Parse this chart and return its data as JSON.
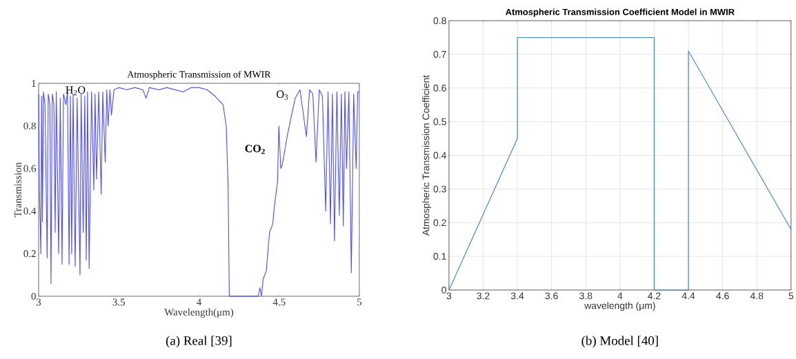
{
  "chart_data": [
    {
      "type": "line",
      "title": "Atmospheric Transmission of MWIR",
      "xlabel": "Wavelength(μm)",
      "ylabel": "Transmission",
      "xlim": [
        3,
        5
      ],
      "ylim": [
        0,
        1
      ],
      "xticks": [
        3,
        3.5,
        4,
        4.5,
        5
      ],
      "yticks": [
        0,
        0.2,
        0.4,
        0.6,
        0.8,
        1
      ],
      "grid": false,
      "series": [
        {
          "color": "#4d4dff",
          "x": [
            3.0,
            3.005,
            3.014,
            3.019,
            3.024,
            3.03,
            3.04,
            3.053,
            3.06,
            3.07,
            3.077,
            3.085,
            3.095,
            3.103,
            3.11,
            3.125,
            3.135,
            3.146,
            3.155,
            3.17,
            3.18,
            3.19,
            3.198,
            3.206,
            3.215,
            3.228,
            3.24,
            3.258,
            3.265,
            3.278,
            3.288,
            3.297,
            3.305,
            3.315,
            3.33,
            3.344,
            3.352,
            3.361,
            3.375,
            3.39,
            3.4,
            3.415,
            3.425,
            3.433,
            3.445,
            3.454,
            3.47,
            3.5,
            3.55,
            3.6,
            3.65,
            3.67,
            3.69,
            3.75,
            3.8,
            3.85,
            3.9,
            3.95,
            4.0,
            4.05,
            4.1,
            4.15,
            4.17,
            4.182,
            4.189,
            4.3,
            4.37,
            4.38,
            4.39,
            4.4,
            4.42,
            4.44,
            4.46,
            4.47,
            4.49,
            4.498,
            4.51,
            4.52,
            4.55,
            4.58,
            4.6,
            4.63,
            4.67,
            4.69,
            4.71,
            4.73,
            4.75,
            4.77,
            4.79,
            4.805,
            4.82,
            4.832,
            4.845,
            4.86,
            4.875,
            4.888,
            4.9,
            4.91,
            4.92,
            4.935,
            4.95,
            4.965,
            4.98,
            4.99,
            5.0
          ],
          "values": [
            0.95,
            0.5,
            0.2,
            0.94,
            0.35,
            0.96,
            0.9,
            0.18,
            0.95,
            0.9,
            0.06,
            0.95,
            0.9,
            0.3,
            0.96,
            0.2,
            0.93,
            0.15,
            0.95,
            0.9,
            0.96,
            0.15,
            0.94,
            0.2,
            0.95,
            0.14,
            0.93,
            0.1,
            0.95,
            0.3,
            0.94,
            0.17,
            0.96,
            0.13,
            0.96,
            0.5,
            0.95,
            0.55,
            0.96,
            0.48,
            0.96,
            0.63,
            0.97,
            0.8,
            0.97,
            0.85,
            0.97,
            0.98,
            0.97,
            0.98,
            0.97,
            0.93,
            0.98,
            0.97,
            0.98,
            0.97,
            0.96,
            0.98,
            0.98,
            0.97,
            0.94,
            0.9,
            0.8,
            0.5,
            0.0,
            0.0,
            0.0,
            0.04,
            0.0,
            0.08,
            0.12,
            0.3,
            0.34,
            0.42,
            0.54,
            0.8,
            0.6,
            0.62,
            0.75,
            0.86,
            0.93,
            0.97,
            0.75,
            0.97,
            0.95,
            0.63,
            0.97,
            0.94,
            0.4,
            0.96,
            0.34,
            0.95,
            0.26,
            0.96,
            0.38,
            0.95,
            0.33,
            0.96,
            0.6,
            0.96,
            0.11,
            0.95,
            0.6,
            0.96,
            0.96
          ]
        }
      ],
      "annotations": [
        "H$_{2}$O",
        "CO$_{2}$",
        "O$_{3}$",
        "(a) Real [39]"
      ]
    },
    {
      "type": "line",
      "title": "Atmospheric Transmission Coefficient Model in MWIR",
      "xlabel": "wavelength (μm)",
      "ylabel": "Atmospheric Transmission Coefficient",
      "xlim": [
        3,
        5
      ],
      "ylim": [
        0,
        0.8
      ],
      "xticks": [
        3,
        3.2,
        3.4,
        3.6,
        3.8,
        4,
        4.2,
        4.4,
        4.6,
        4.8,
        5
      ],
      "yticks": [
        0,
        0.1,
        0.2,
        0.3,
        0.4,
        0.5,
        0.6,
        0.7,
        0.8
      ],
      "grid": true,
      "series": [
        {
          "color": "#3f7fc4",
          "x": [
            3,
            3.4,
            3.4,
            4.2,
            4.2,
            4.4,
            4.4,
            5
          ],
          "values": [
            0,
            0.45,
            0.75,
            0.75,
            0,
            0,
            0.71,
            0.18
          ]
        }
      ],
      "annotations": [
        "(b) Model [40]"
      ]
    }
  ]
}
